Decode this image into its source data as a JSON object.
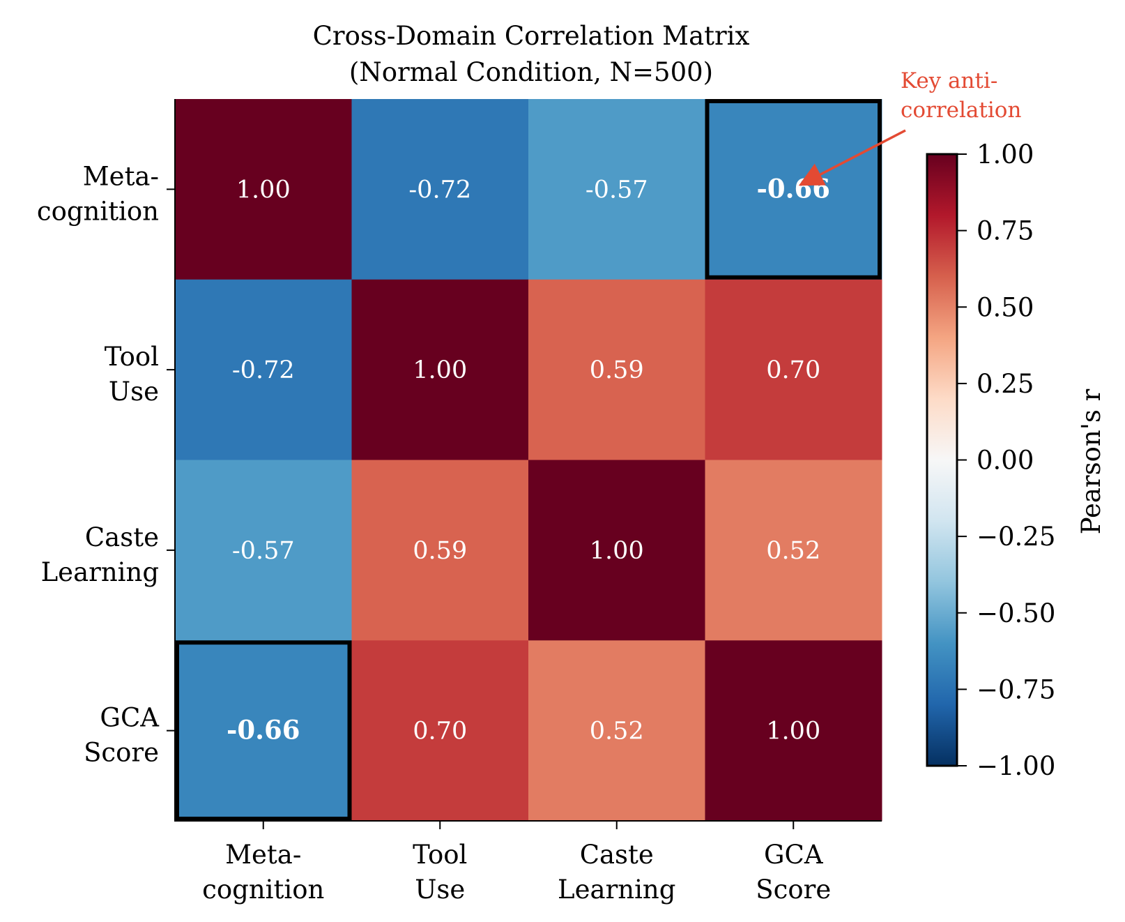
{
  "chart_data": {
    "type": "heatmap",
    "title": [
      "Cross-Domain Correlation Matrix",
      "(Normal Condition, N=500)"
    ],
    "row_labels": [
      [
        "Meta-",
        "cognition"
      ],
      [
        "Tool",
        "Use"
      ],
      [
        "Caste",
        "Learning"
      ],
      [
        "GCA",
        "Score"
      ]
    ],
    "col_labels": [
      [
        "Meta-",
        "cognition"
      ],
      [
        "Tool",
        "Use"
      ],
      [
        "Caste",
        "Learning"
      ],
      [
        "GCA",
        "Score"
      ]
    ],
    "values": [
      [
        1.0,
        -0.72,
        -0.57,
        -0.66
      ],
      [
        -0.72,
        1.0,
        0.59,
        0.7
      ],
      [
        -0.57,
        0.59,
        1.0,
        0.52
      ],
      [
        -0.66,
        0.7,
        0.52,
        1.0
      ]
    ],
    "highlighted_cells": [
      [
        0,
        3
      ],
      [
        3,
        0
      ]
    ],
    "colormap": "RdBu_r",
    "colorbar": {
      "label": "Pearson's r",
      "range": [
        -1,
        1
      ],
      "ticks": [
        "1.00",
        "0.75",
        "0.50",
        "0.25",
        "0.00",
        "−0.25",
        "−0.50",
        "−0.75",
        "−1.00"
      ],
      "tick_values": [
        1,
        0.75,
        0.5,
        0.25,
        0,
        -0.25,
        -0.5,
        -0.75,
        -1
      ]
    },
    "annotation": {
      "text": [
        "Key anti-",
        "correlation"
      ],
      "color": "#e34a33",
      "target_cell": [
        0,
        3
      ]
    }
  }
}
